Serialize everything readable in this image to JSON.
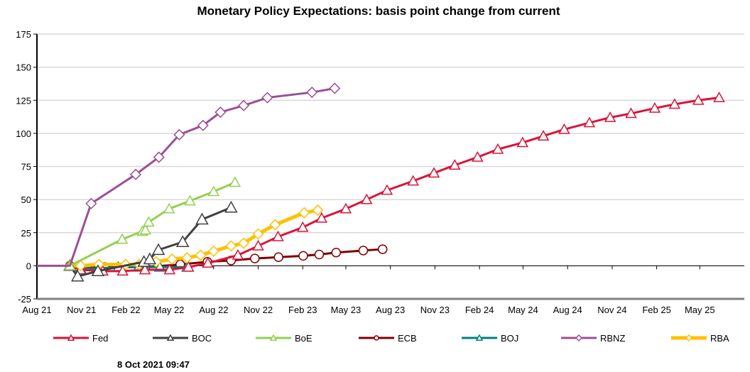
{
  "chart_data": {
    "type": "line",
    "title": "Monetary Policy Expectations: basis point change from current",
    "xlabel": "",
    "ylabel": "",
    "ylim": [
      -25,
      175
    ],
    "yticks": [
      -25,
      0,
      25,
      50,
      75,
      100,
      125,
      150,
      175
    ],
    "xlim": [
      "2021-08-01",
      "2025-08-01"
    ],
    "xticks": [
      {
        "date": "2021-08-01",
        "label": "Aug 21"
      },
      {
        "date": "2021-11-01",
        "label": "Nov 21"
      },
      {
        "date": "2022-02-01",
        "label": "Feb 22"
      },
      {
        "date": "2022-05-01",
        "label": "May 22"
      },
      {
        "date": "2022-08-01",
        "label": "Aug 22"
      },
      {
        "date": "2022-11-01",
        "label": "Nov 22"
      },
      {
        "date": "2023-02-01",
        "label": "Feb 23"
      },
      {
        "date": "2023-05-01",
        "label": "May 23"
      },
      {
        "date": "2023-08-01",
        "label": "Aug 23"
      },
      {
        "date": "2023-11-01",
        "label": "Nov 23"
      },
      {
        "date": "2024-02-01",
        "label": "Feb 24"
      },
      {
        "date": "2024-05-01",
        "label": "May 24"
      },
      {
        "date": "2024-08-01",
        "label": "Aug 24"
      },
      {
        "date": "2024-11-01",
        "label": "Nov 24"
      },
      {
        "date": "2025-02-01",
        "label": "Feb 25"
      },
      {
        "date": "2025-05-01",
        "label": "May 25"
      }
    ],
    "grid": "horizontal",
    "legend": "bottom",
    "series": [
      {
        "name": "Fed",
        "color": "#d9143a",
        "marker": "triangle",
        "points": [
          [
            "2021-10-08",
            0
          ],
          [
            "2021-10-30",
            -3
          ],
          [
            "2021-12-15",
            -4
          ],
          [
            "2022-01-25",
            -4
          ],
          [
            "2022-03-12",
            -3
          ],
          [
            "2022-05-02",
            -3
          ],
          [
            "2022-06-10",
            -1
          ],
          [
            "2022-07-20",
            2
          ],
          [
            "2022-09-20",
            8
          ],
          [
            "2022-11-01",
            15
          ],
          [
            "2022-12-12",
            22
          ],
          [
            "2023-02-01",
            29
          ],
          [
            "2023-03-12",
            36
          ],
          [
            "2023-05-01",
            43
          ],
          [
            "2023-06-13",
            50
          ],
          [
            "2023-07-25",
            57
          ],
          [
            "2023-09-17",
            64
          ],
          [
            "2023-10-30",
            70
          ],
          [
            "2023-12-12",
            76
          ],
          [
            "2024-01-28",
            82
          ],
          [
            "2024-03-10",
            88
          ],
          [
            "2024-04-30",
            93
          ],
          [
            "2024-06-12",
            98
          ],
          [
            "2024-07-25",
            103
          ],
          [
            "2024-09-15",
            108
          ],
          [
            "2024-10-28",
            112
          ],
          [
            "2024-12-10",
            115
          ],
          [
            "2025-01-28",
            119
          ],
          [
            "2025-03-10",
            122
          ],
          [
            "2025-04-28",
            125
          ],
          [
            "2025-06-10",
            127
          ]
        ]
      },
      {
        "name": "BOC",
        "color": "#404040",
        "marker": "triangle",
        "points": [
          [
            "2021-10-08",
            0
          ],
          [
            "2021-10-24",
            -8
          ],
          [
            "2021-12-05",
            -4
          ],
          [
            "2022-03-10",
            3
          ],
          [
            "2022-03-22",
            5
          ],
          [
            "2022-04-09",
            12
          ],
          [
            "2022-05-29",
            18
          ],
          [
            "2022-07-08",
            35
          ],
          [
            "2022-09-06",
            44
          ]
        ]
      },
      {
        "name": "BoE",
        "color": "#92d050",
        "marker": "triangle",
        "points": [
          [
            "2021-10-08",
            0
          ],
          [
            "2022-01-24",
            20
          ],
          [
            "2022-03-07",
            26
          ],
          [
            "2022-03-13",
            27
          ],
          [
            "2022-03-20",
            33
          ],
          [
            "2022-05-01",
            43
          ],
          [
            "2022-06-13",
            49
          ],
          [
            "2022-08-01",
            56
          ],
          [
            "2022-09-14",
            63
          ]
        ]
      },
      {
        "name": "ECB",
        "color": "#7f0000",
        "marker": "circle",
        "points": [
          [
            "2021-10-08",
            0
          ],
          [
            "2021-12-19",
            -1
          ],
          [
            "2022-03-13",
            -1
          ],
          [
            "2022-05-24",
            1
          ],
          [
            "2022-07-19",
            3
          ],
          [
            "2022-09-06",
            4
          ],
          [
            "2022-10-25",
            5.5
          ],
          [
            "2022-12-13",
            6.5
          ],
          [
            "2023-02-02",
            7.5
          ],
          [
            "2023-03-07",
            8.5
          ],
          [
            "2023-04-11",
            10
          ],
          [
            "2023-06-06",
            11.5
          ],
          [
            "2023-07-16",
            12.5
          ]
        ]
      },
      {
        "name": "BOJ",
        "color": "#008080",
        "marker": "triangle",
        "points": [
          [
            "2021-10-08",
            0
          ],
          [
            "2021-10-30",
            -2
          ],
          [
            "2021-12-08",
            -2
          ],
          [
            "2022-01-16",
            -1
          ],
          [
            "2022-02-27",
            -1
          ],
          [
            "2022-04-12",
            -1
          ],
          [
            "2022-06-07",
            -1
          ]
        ]
      },
      {
        "name": "RBNZ",
        "color": "#9b4f96",
        "marker": "diamond",
        "points": [
          [
            "2021-08-01",
            0
          ],
          [
            "2021-10-08",
            0
          ],
          [
            "2021-11-21",
            47
          ],
          [
            "2022-02-21",
            69
          ],
          [
            "2022-04-10",
            82
          ],
          [
            "2022-05-22",
            99
          ],
          [
            "2022-07-10",
            106
          ],
          [
            "2022-08-15",
            116
          ],
          [
            "2022-10-02",
            121
          ],
          [
            "2022-11-20",
            127
          ],
          [
            "2023-02-20",
            131
          ],
          [
            "2023-04-08",
            134
          ]
        ]
      },
      {
        "name": "RBA",
        "color": "#ffc000",
        "marker": "diamond",
        "points": [
          [
            "2021-10-08",
            0
          ],
          [
            "2021-10-30",
            0
          ],
          [
            "2021-12-07",
            1
          ],
          [
            "2022-01-31",
            1
          ],
          [
            "2022-02-28",
            1
          ],
          [
            "2022-04-04",
            3
          ],
          [
            "2022-05-07",
            5
          ],
          [
            "2022-06-07",
            6
          ],
          [
            "2022-07-05",
            8
          ],
          [
            "2022-08-01",
            11
          ],
          [
            "2022-09-06",
            15
          ],
          [
            "2022-10-02",
            17
          ],
          [
            "2022-11-01",
            24
          ],
          [
            "2022-12-06",
            31
          ],
          [
            "2023-02-04",
            40
          ],
          [
            "2023-03-04",
            42
          ]
        ]
      }
    ]
  },
  "footer": {
    "timestamp": "8 Oct 2021 09:47"
  }
}
